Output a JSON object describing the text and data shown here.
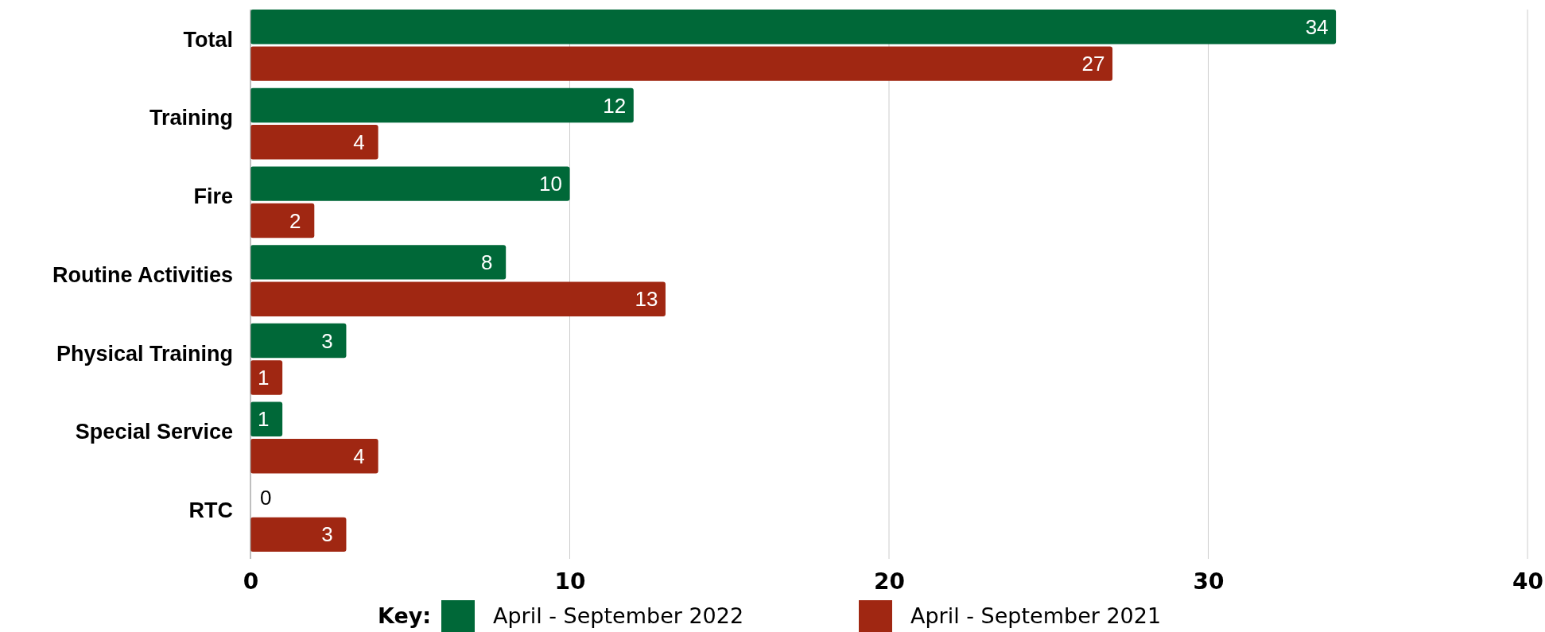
{
  "chart_data": {
    "type": "bar",
    "orientation": "horizontal",
    "categories": [
      "Total",
      "Training",
      "Fire",
      "Routine Activities",
      "Physical Training",
      "Special Service",
      "RTC"
    ],
    "series": [
      {
        "name": "April - September 2022",
        "color": "#006838",
        "values": [
          34,
          12,
          10,
          8,
          3,
          1,
          0
        ]
      },
      {
        "name": "April - September 2021",
        "color": "#a02712",
        "values": [
          27,
          4,
          2,
          13,
          1,
          4,
          3
        ]
      }
    ],
    "xlim": [
      0,
      40
    ],
    "xticks": [
      0,
      10,
      20,
      30,
      40
    ],
    "grid": "x",
    "legend": "bottom",
    "legend_title": "Key:",
    "data_labels": true
  }
}
